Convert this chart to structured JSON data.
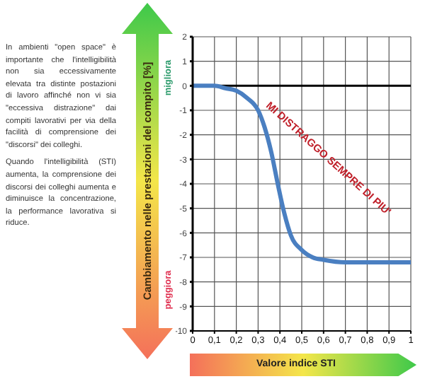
{
  "chart_data": {
    "type": "line",
    "xlabel": "Valore indice STI",
    "ylabel": "Cambiamento nelle prestazioni del compito [%]",
    "x": [
      0,
      0.05,
      0.1,
      0.15,
      0.2,
      0.25,
      0.3,
      0.33,
      0.36,
      0.39,
      0.42,
      0.45,
      0.5,
      0.55,
      0.6,
      0.7,
      0.8,
      0.9,
      1
    ],
    "series": [
      {
        "color": "#4a7fc1",
        "values": [
          0,
          0,
          0,
          -0.1,
          -0.2,
          -0.5,
          -1,
          -1.7,
          -2.7,
          -4,
          -5.2,
          -6.1,
          -6.7,
          -7,
          -7.1,
          -7.2,
          -7.2,
          -7.2,
          -7.2
        ]
      }
    ],
    "xlim": [
      0,
      1
    ],
    "xticks": [
      0,
      {
        "value": 0.1,
        "label": "0,1"
      },
      {
        "value": 0.2,
        "label": "0,2"
      },
      {
        "value": 0.3,
        "label": "0,3"
      },
      {
        "value": 0.4,
        "label": "0,4"
      },
      {
        "value": 0.5,
        "label": "0,5"
      },
      {
        "value": 0.6,
        "label": "0,6"
      },
      {
        "value": 0.7,
        "label": "0,7"
      },
      {
        "value": 0.8,
        "label": "0,8"
      },
      {
        "value": 0.9,
        "label": "0,9"
      },
      1
    ],
    "ylim": [
      -10,
      2
    ],
    "yticks": [
      -10,
      -9,
      -8,
      -7,
      -6,
      -5,
      -4,
      -3,
      -2,
      -1,
      0,
      1,
      2
    ],
    "ref_lines": [
      {
        "axis": "y",
        "value": 0,
        "color": "#000000"
      }
    ],
    "grid": true,
    "annotations": [
      "In ambienti \"open space\" è importante che l'intelligibilità non sia eccessivamente elevata tra distinte postazioni di lavoro affinché non vi sia \"eccessiva distrazione\" dai compiti lavorativi per via della facilità di comprensione dei \"discorsi\" dei colleghi.",
      "Quando l'intelligibilità (STI) aumenta, la comprensione dei discorsi dei colleghi aumenta e diminuisce la concentrazione, la performance lavorativa si riduce.",
      "migliora",
      "peggiora",
      "MI DISTRAGGO SEMPRE DI PIU'"
    ]
  }
}
